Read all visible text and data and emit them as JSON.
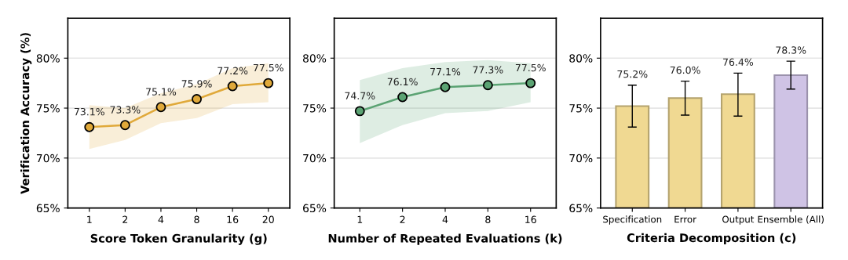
{
  "chart_data": [
    {
      "type": "line",
      "xlabel": "Score Token Granularity (g)",
      "ylabel": "Verification Accuracy (%)",
      "categories": [
        "1",
        "2",
        "4",
        "8",
        "16",
        "20"
      ],
      "series": [
        {
          "color": "#e0a93a",
          "values": [
            73.1,
            73.3,
            75.1,
            75.9,
            77.2,
            77.5
          ],
          "lower": [
            70.9,
            71.8,
            73.5,
            74.0,
            75.4,
            75.6
          ],
          "upper": [
            75.3,
            75.0,
            76.5,
            77.4,
            79.0,
            79.5
          ],
          "value_labels": [
            "73.1%",
            "73.3%",
            "75.1%",
            "75.9%",
            "77.2%",
            "77.5%"
          ]
        }
      ],
      "ylim": [
        65,
        84
      ],
      "yticks": [
        {
          "value": 65,
          "label": "65%"
        },
        {
          "value": 70,
          "label": "70%"
        },
        {
          "value": 75,
          "label": "75%"
        },
        {
          "value": 80,
          "label": "80%"
        }
      ],
      "grid": "y",
      "marker": "circle",
      "line_style": "solid"
    },
    {
      "type": "line",
      "xlabel": "Number of Repeated Evaluations (k)",
      "categories": [
        "1",
        "2",
        "4",
        "8",
        "16"
      ],
      "series": [
        {
          "color": "#5ba373",
          "values": [
            74.7,
            76.1,
            77.1,
            77.3,
            77.5
          ],
          "lower": [
            71.5,
            73.3,
            74.5,
            74.7,
            75.6
          ],
          "upper": [
            77.8,
            79.0,
            79.6,
            79.8,
            79.5
          ],
          "value_labels": [
            "74.7%",
            "76.1%",
            "77.1%",
            "77.3%",
            "77.5%"
          ]
        }
      ],
      "ylim": [
        65,
        84
      ],
      "yticks": [
        {
          "value": 65,
          "label": "65%"
        },
        {
          "value": 70,
          "label": "70%"
        },
        {
          "value": 75,
          "label": "75%"
        },
        {
          "value": 80,
          "label": "80%"
        }
      ],
      "grid": "y",
      "marker": "circle",
      "line_style": "solid"
    },
    {
      "type": "bar",
      "xlabel": "Criteria Decomposition (c)",
      "categories": [
        "Specification",
        "Error",
        "Output",
        "Ensemble (All)"
      ],
      "values": [
        75.2,
        76.0,
        76.4,
        78.3
      ],
      "colors": [
        "#f0d992",
        "#f0d992",
        "#f0d992",
        "#cfc3e5"
      ],
      "errors": [
        [
          73.1,
          77.3
        ],
        [
          74.3,
          77.7
        ],
        [
          74.2,
          78.5
        ],
        [
          76.9,
          79.7
        ]
      ],
      "value_labels": [
        "75.2%",
        "76.0%",
        "76.4%",
        "78.3%"
      ],
      "ylim": [
        65,
        84
      ],
      "yticks": [
        {
          "value": 65,
          "label": "65%"
        },
        {
          "value": 70,
          "label": "70%"
        },
        {
          "value": 75,
          "label": "75%"
        },
        {
          "value": 80,
          "label": "80%"
        }
      ],
      "grid": "y"
    }
  ]
}
